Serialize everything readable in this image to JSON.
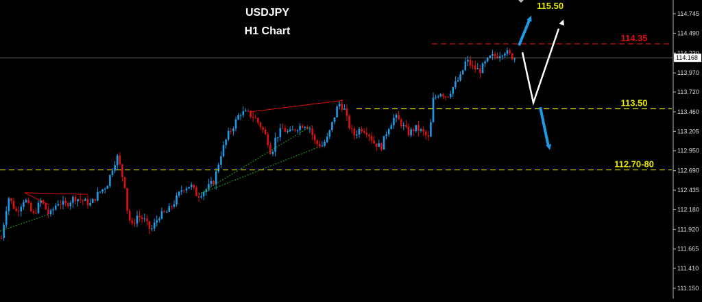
{
  "chart_data": {
    "type": "candlestick",
    "title": "USDJPY",
    "subtitle": "H1 Chart",
    "ylim": [
      111.04,
      114.88
    ],
    "y_ticks": [
      "114.745",
      "114.490",
      "114.230",
      "113.970",
      "113.720",
      "113.460",
      "113.205",
      "112.950",
      "112.690",
      "112.435",
      "112.180",
      "111.920",
      "111.665",
      "111.410",
      "111.150"
    ],
    "current_price": "114.168",
    "levels": [
      {
        "label": "114.35",
        "value": 114.35,
        "color": "#e01010",
        "style": "dashed"
      },
      {
        "label": "113.50",
        "value": 113.5,
        "color": "#e8e800",
        "style": "dashed"
      },
      {
        "label": "112.70-80",
        "value": 112.7,
        "color": "#e8e800",
        "style": "dashed"
      }
    ],
    "target_label": "115.50",
    "colors": {
      "bull": "#1e9be6",
      "bear": "#e01010",
      "background": "#000000",
      "axis_text": "#dddddd",
      "target_text": "#e8e800"
    },
    "legend": "none",
    "grid": false,
    "close_path": [
      [
        0,
        111.7
      ],
      [
        12,
        112.35
      ],
      [
        24,
        112.15
      ],
      [
        36,
        112.33
      ],
      [
        48,
        112.1
      ],
      [
        60,
        112.3
      ],
      [
        72,
        112.1
      ],
      [
        84,
        112.28
      ],
      [
        96,
        112.24
      ],
      [
        108,
        112.34
      ],
      [
        120,
        112.3
      ],
      [
        132,
        112.25
      ],
      [
        144,
        112.4
      ],
      [
        156,
        112.5
      ],
      [
        166,
        112.78
      ],
      [
        172,
        112.88
      ],
      [
        176,
        112.7
      ],
      [
        182,
        112.5
      ],
      [
        186,
        112.15
      ],
      [
        192,
        111.95
      ],
      [
        200,
        112.1
      ],
      [
        210,
        112.05
      ],
      [
        220,
        111.9
      ],
      [
        232,
        112.1
      ],
      [
        244,
        112.15
      ],
      [
        256,
        112.3
      ],
      [
        266,
        112.46
      ],
      [
        278,
        112.5
      ],
      [
        288,
        112.36
      ],
      [
        300,
        112.44
      ],
      [
        312,
        112.55
      ],
      [
        322,
        112.9
      ],
      [
        332,
        113.15
      ],
      [
        342,
        113.3
      ],
      [
        350,
        113.45
      ],
      [
        362,
        113.44
      ],
      [
        372,
        113.38
      ],
      [
        382,
        113.25
      ],
      [
        390,
        113.1
      ],
      [
        396,
        112.9
      ],
      [
        402,
        113.12
      ],
      [
        412,
        113.24
      ],
      [
        422,
        113.18
      ],
      [
        432,
        113.25
      ],
      [
        444,
        113.3
      ],
      [
        452,
        113.25
      ],
      [
        460,
        113.05
      ],
      [
        470,
        113.02
      ],
      [
        478,
        113.12
      ],
      [
        486,
        113.35
      ],
      [
        494,
        113.58
      ],
      [
        502,
        113.5
      ],
      [
        508,
        113.3
      ],
      [
        516,
        113.15
      ],
      [
        526,
        113.25
      ],
      [
        536,
        113.2
      ],
      [
        546,
        113.05
      ],
      [
        556,
        113.0
      ],
      [
        566,
        113.25
      ],
      [
        576,
        113.4
      ],
      [
        586,
        113.3
      ],
      [
        596,
        113.18
      ],
      [
        606,
        113.25
      ],
      [
        616,
        113.2
      ],
      [
        626,
        113.1
      ],
      [
        632,
        113.62
      ],
      [
        642,
        113.72
      ],
      [
        652,
        113.66
      ],
      [
        662,
        113.8
      ],
      [
        672,
        113.92
      ],
      [
        680,
        114.14
      ],
      [
        690,
        114.04
      ],
      [
        700,
        114.0
      ],
      [
        708,
        114.1
      ],
      [
        716,
        114.18
      ],
      [
        726,
        114.2
      ],
      [
        736,
        114.26
      ],
      [
        744,
        114.2
      ],
      [
        752,
        114.16
      ]
    ]
  }
}
